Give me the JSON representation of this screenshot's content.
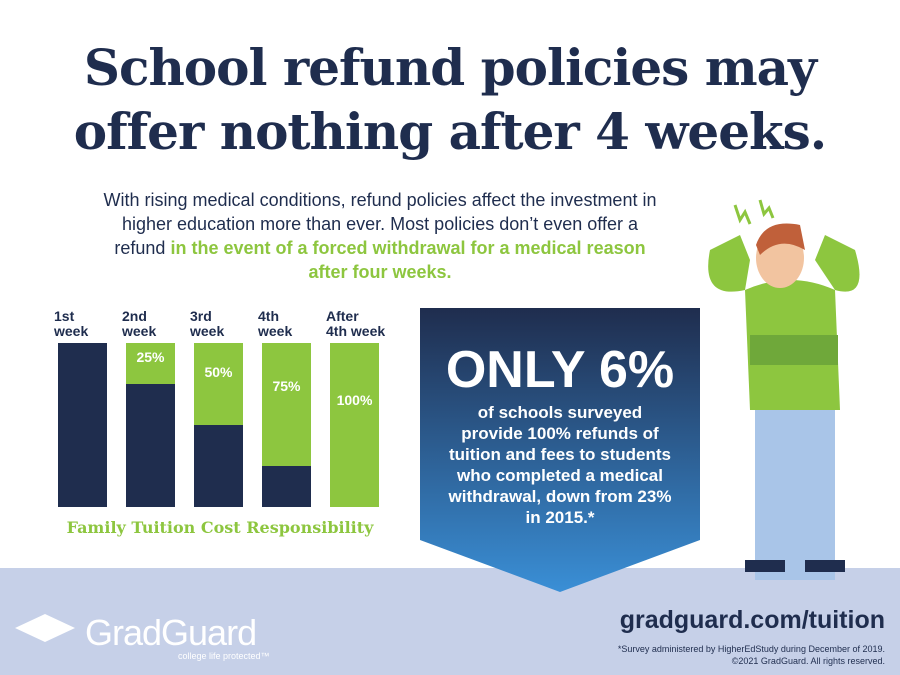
{
  "header": {
    "title_line1": "School refund policies may",
    "title_line2": "offer nothing after 4 weeks."
  },
  "intro": {
    "text": "With rising medical conditions, refund policies affect the investment in higher education more than ever.  Most policies don’t even offer a refund",
    "highlight": "in the event of a forced withdrawal for a medical reason after four weeks."
  },
  "chart_data": {
    "type": "stacked-bar",
    "title": "Family Tuition Cost Responsibility",
    "categories": [
      "1st\nweek",
      "2nd\nweek",
      "3rd\nweek",
      "4th\nweek",
      "After\n4th week"
    ],
    "series": [
      {
        "color": "#1f2d4e",
        "values": [
          100,
          75,
          50,
          25,
          0
        ]
      },
      {
        "color": "#8dc63f",
        "values": [
          0,
          25,
          50,
          75,
          100
        ],
        "value_labels": [
          null,
          "25%",
          "50%",
          "75%",
          "100%"
        ]
      }
    ],
    "ylim": [
      0,
      100
    ]
  },
  "callout": {
    "headline": "ONLY 6%",
    "text": "of schools surveyed provide 100% refunds of tuition and fees to students who completed a medical withdrawal, down from 23% in 2015.*"
  },
  "footer": {
    "logo": "GradGuard",
    "tagline": "college life protected™",
    "url": "gradguard.com/tuition",
    "note1": "*Survey administered by HigherEdStudy during December of 2019.",
    "note2": "©2021 GradGuard. All rights reserved."
  }
}
